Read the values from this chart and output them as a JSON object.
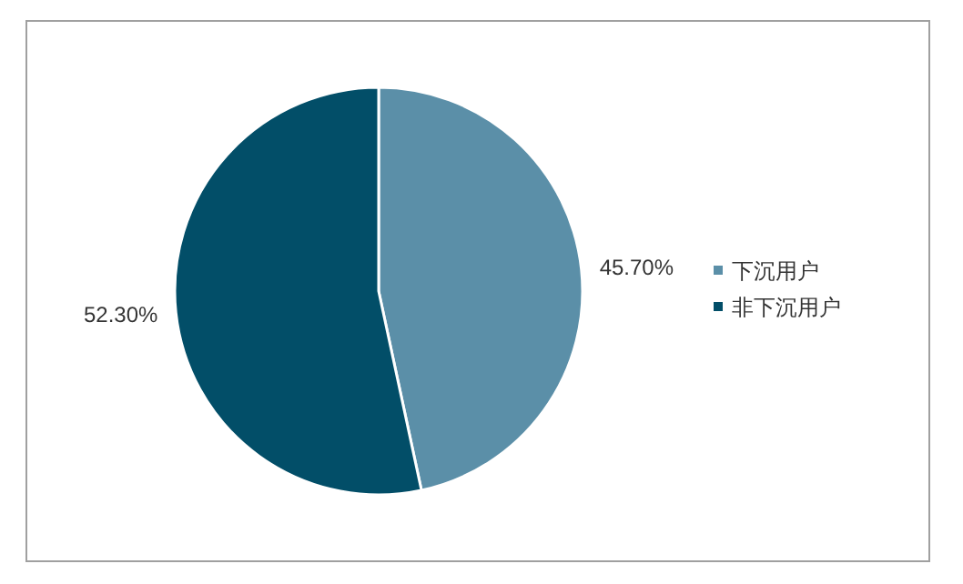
{
  "chart_data": {
    "type": "pie",
    "categories": [
      "下沉用户",
      "非下沉用户"
    ],
    "values": [
      45.7,
      52.3
    ],
    "colors": [
      "#5b8fa8",
      "#024e68"
    ],
    "value_labels": [
      "45.70%",
      "52.30%"
    ],
    "legend": "right"
  }
}
